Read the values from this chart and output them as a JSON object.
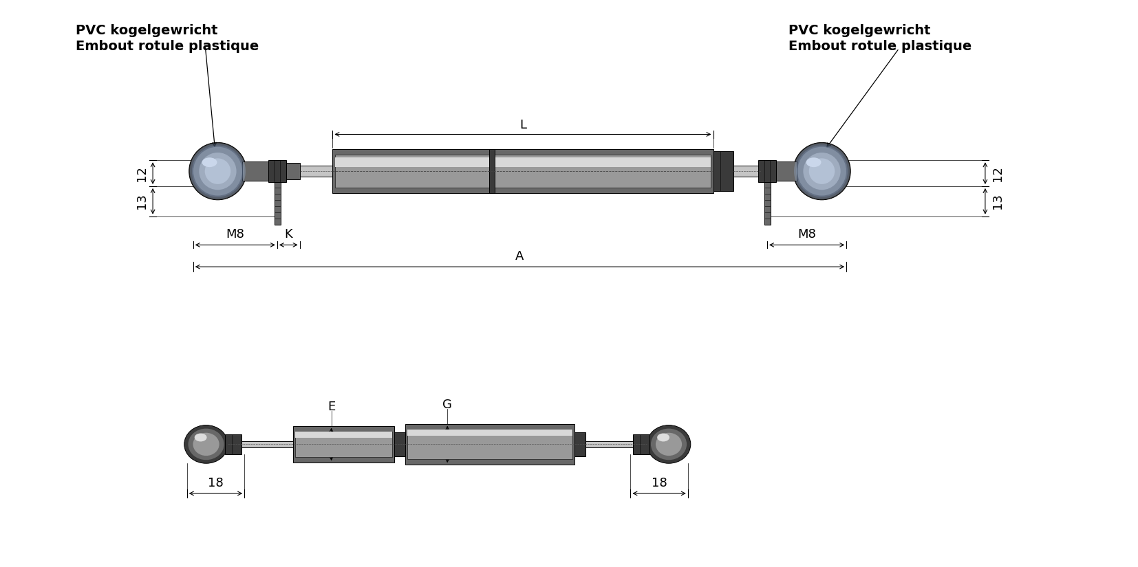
{
  "bg_color": "#ffffff",
  "c_dark": "#3a3a3a",
  "c_mid": "#686868",
  "c_light": "#999999",
  "c_lighter": "#bbbbbb",
  "c_chrome": "#c5c5c5",
  "c_chrome2": "#d8d8d8",
  "c_vlight": "#e2e2e2",
  "label_left_1": "PVC kogelgewricht",
  "label_left_2": "Embout rotule plastique",
  "label_right_1": "PVC kogelgewricht",
  "label_right_2": "Embout rotule plastique",
  "fs_label": 14,
  "fs_dim": 13,
  "font": "DejaVu Sans"
}
